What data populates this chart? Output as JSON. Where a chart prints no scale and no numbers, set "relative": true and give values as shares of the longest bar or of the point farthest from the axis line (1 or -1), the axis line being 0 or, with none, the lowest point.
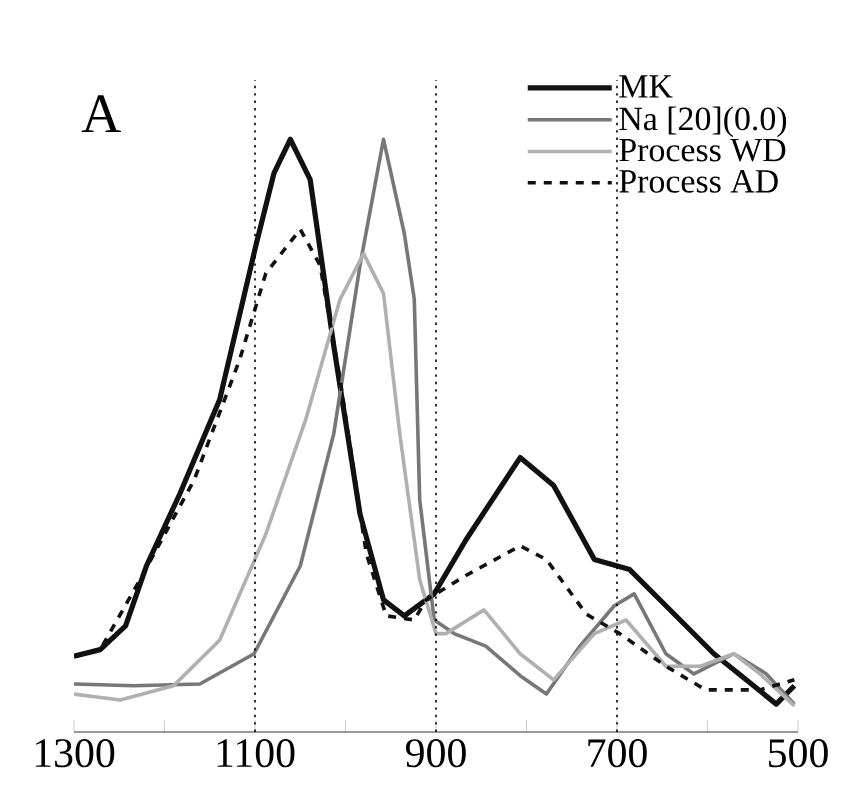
{
  "chart_data": {
    "type": "line",
    "title": "A",
    "relative": true,
    "xlim": [
      1300,
      500
    ],
    "xticks": [
      1300,
      {
        "value": 1200,
        "label": null
      },
      1100,
      {
        "value": 1000,
        "label": null
      },
      900,
      {
        "value": 800,
        "label": null
      },
      700,
      {
        "value": 600,
        "label": null
      },
      500
    ],
    "legend": "top right",
    "grid": false,
    "marker": "none",
    "ref_lines": [
      {
        "axis": "x",
        "value": 1100,
        "color": "#000000",
        "line_style": "dotted"
      },
      {
        "axis": "x",
        "value": 900,
        "color": "#000000",
        "line_style": "dotted"
      },
      {
        "axis": "x",
        "value": 700,
        "color": "#000000",
        "line_style": "dotted"
      }
    ],
    "series": [
      {
        "name": "MK",
        "color": "#111111",
        "line_style": "solid",
        "x": [
          1300,
          1271,
          1243,
          1220,
          1183,
          1139,
          1099,
          1079,
          1061,
          1039,
          1013,
          984,
          958,
          935,
          911,
          902,
          867,
          807,
          770,
          725,
          686,
          646,
          593,
          549,
          524,
          504
        ],
        "values": [
          0.128,
          0.139,
          0.179,
          0.28,
          0.402,
          0.561,
          0.821,
          0.943,
          1.0,
          0.932,
          0.652,
          0.368,
          0.223,
          0.196,
          0.223,
          0.233,
          0.324,
          0.463,
          0.416,
          0.291,
          0.274,
          0.213,
          0.132,
          0.078,
          0.047,
          0.078
        ]
      },
      {
        "name": "Na [20](0.0)",
        "color": "#777777",
        "line_style": "solid",
        "x": [
          1300,
          1234,
          1161,
          1101,
          1050,
          1013,
          984,
          958,
          935,
          924,
          918,
          902,
          880,
          845,
          807,
          778,
          741,
          703,
          681,
          646,
          615,
          571,
          535,
          504
        ],
        "values": [
          0.081,
          0.078,
          0.081,
          0.132,
          0.28,
          0.503,
          0.787,
          1.0,
          0.841,
          0.73,
          0.392,
          0.189,
          0.166,
          0.145,
          0.095,
          0.064,
          0.145,
          0.213,
          0.233,
          0.132,
          0.098,
          0.132,
          0.098,
          0.047
        ]
      },
      {
        "name": "Process WD",
        "color": "#b0b0b0",
        "line_style": "solid",
        "x": [
          1300,
          1249,
          1190,
          1139,
          1088,
          1044,
          1006,
          980,
          958,
          940,
          918,
          900,
          889,
          847,
          807,
          770,
          725,
          690,
          646,
          608,
          571,
          542,
          504
        ],
        "values": [
          0.064,
          0.054,
          0.078,
          0.155,
          0.334,
          0.527,
          0.73,
          0.807,
          0.74,
          0.503,
          0.257,
          0.166,
          0.166,
          0.206,
          0.132,
          0.088,
          0.166,
          0.189,
          0.111,
          0.111,
          0.132,
          0.098,
          0.044
        ]
      },
      {
        "name": "Process AD",
        "color": "#111111",
        "line_style": "dashed",
        "x": [
          1300,
          1271,
          1227,
          1167,
          1117,
          1088,
          1050,
          1028,
          1006,
          977,
          955,
          924,
          911,
          867,
          807,
          778,
          734,
          697,
          646,
          602,
          542,
          504
        ],
        "values": [
          0.128,
          0.139,
          0.257,
          0.426,
          0.628,
          0.774,
          0.848,
          0.787,
          0.595,
          0.301,
          0.196,
          0.189,
          0.223,
          0.264,
          0.314,
          0.291,
          0.199,
          0.166,
          0.111,
          0.071,
          0.071,
          0.088
        ]
      }
    ]
  }
}
